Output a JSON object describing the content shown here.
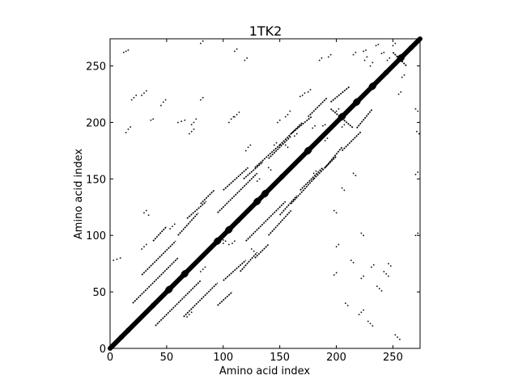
{
  "chart_data": {
    "type": "heatmap",
    "title": "1TK2",
    "xlabel": "Amino acid index",
    "ylabel": "Amino acid index",
    "xlim": [
      0,
      274
    ],
    "ylim": [
      0,
      274
    ],
    "grid": false,
    "xticks": [
      0,
      50,
      100,
      150,
      200,
      250
    ],
    "yticks": [
      0,
      50,
      100,
      150,
      200,
      250
    ],
    "xtick_labels": [
      "0",
      "50",
      "100",
      "150",
      "200",
      "250"
    ],
    "ytick_labels": [
      "0",
      "50",
      "100",
      "150",
      "200",
      "250"
    ],
    "cmap": [
      "#ffffff",
      "#000000"
    ],
    "diagonal": {
      "from": 0,
      "to": 274,
      "half_width": 3
    },
    "diagonal_blobs": [
      [
        10,
        3
      ],
      [
        16,
        3
      ],
      [
        38,
        3
      ],
      [
        52,
        4
      ],
      [
        66,
        4
      ],
      [
        95,
        4
      ],
      [
        105,
        4
      ],
      [
        113,
        3
      ],
      [
        130,
        4
      ],
      [
        137,
        4
      ],
      [
        152,
        3
      ],
      [
        175,
        4
      ],
      [
        205,
        4
      ],
      [
        218,
        4
      ],
      [
        232,
        4
      ],
      [
        244,
        3
      ],
      [
        257,
        4
      ],
      [
        266,
        3
      ]
    ],
    "contact_segments": [
      {
        "from": [
          20,
          40
        ],
        "to": [
          60,
          80
        ],
        "width": 1
      },
      {
        "from": [
          28,
          65
        ],
        "to": [
          58,
          95
        ],
        "width": 1
      },
      {
        "from": [
          38,
          95
        ],
        "to": [
          50,
          108
        ],
        "width": 1
      },
      {
        "from": [
          60,
          100
        ],
        "to": [
          78,
          120
        ],
        "width": 1
      },
      {
        "from": [
          68,
          115
        ],
        "to": [
          85,
          130
        ],
        "width": 1
      },
      {
        "from": [
          80,
          128
        ],
        "to": [
          92,
          140
        ],
        "width": 1
      },
      {
        "from": [
          95,
          120
        ],
        "to": [
          130,
          155
        ],
        "width": 1
      },
      {
        "from": [
          100,
          140
        ],
        "to": [
          122,
          160
        ],
        "width": 1
      },
      {
        "from": [
          118,
          150
        ],
        "to": [
          135,
          165
        ],
        "width": 1
      },
      {
        "from": [
          128,
          160
        ],
        "to": [
          150,
          180
        ],
        "width": 1
      },
      {
        "from": [
          140,
          168
        ],
        "to": [
          160,
          188
        ],
        "width": 1
      },
      {
        "from": [
          150,
          180
        ],
        "to": [
          170,
          200
        ],
        "width": 1
      },
      {
        "from": [
          160,
          190
        ],
        "to": [
          178,
          205
        ],
        "width": 1
      },
      {
        "from": [
          175,
          205
        ],
        "to": [
          192,
          222
        ],
        "width": 1
      },
      {
        "from": [
          195,
          218
        ],
        "to": [
          212,
          232
        ],
        "width": 1
      },
      {
        "from": [
          195,
          212
        ],
        "to": [
          215,
          195
        ],
        "width": 1
      },
      {
        "from": [
          250,
          262
        ],
        "to": [
          262,
          250
        ],
        "width": 1
      },
      {
        "from": [
          40,
          20
        ],
        "to": [
          80,
          60
        ],
        "width": 1
      },
      {
        "from": [
          65,
          28
        ],
        "to": [
          95,
          58
        ],
        "width": 1
      },
      {
        "from": [
          95,
          38
        ],
        "to": [
          108,
          50
        ],
        "width": 1
      },
      {
        "from": [
          100,
          60
        ],
        "to": [
          120,
          78
        ],
        "width": 1
      },
      {
        "from": [
          115,
          68
        ],
        "to": [
          130,
          85
        ],
        "width": 1
      },
      {
        "from": [
          128,
          80
        ],
        "to": [
          140,
          92
        ],
        "width": 1
      },
      {
        "from": [
          120,
          95
        ],
        "to": [
          155,
          130
        ],
        "width": 1
      },
      {
        "from": [
          140,
          100
        ],
        "to": [
          160,
          122
        ],
        "width": 1
      },
      {
        "from": [
          150,
          118
        ],
        "to": [
          165,
          135
        ],
        "width": 1
      },
      {
        "from": [
          160,
          128
        ],
        "to": [
          180,
          150
        ],
        "width": 1
      },
      {
        "from": [
          168,
          140
        ],
        "to": [
          188,
          160
        ],
        "width": 1
      },
      {
        "from": [
          180,
          150
        ],
        "to": [
          200,
          170
        ],
        "width": 1
      },
      {
        "from": [
          190,
          160
        ],
        "to": [
          205,
          178
        ],
        "width": 1
      },
      {
        "from": [
          205,
          175
        ],
        "to": [
          222,
          192
        ],
        "width": 1
      },
      {
        "from": [
          218,
          195
        ],
        "to": [
          232,
          212
        ],
        "width": 1
      }
    ],
    "contact_points": [
      [
        3,
        78
      ],
      [
        6,
        79
      ],
      [
        9,
        80
      ],
      [
        14,
        191
      ],
      [
        16,
        194
      ],
      [
        18,
        196
      ],
      [
        19,
        220
      ],
      [
        21,
        222
      ],
      [
        23,
        224
      ],
      [
        12,
        262
      ],
      [
        14,
        263
      ],
      [
        16,
        264
      ],
      [
        28,
        224
      ],
      [
        30,
        226
      ],
      [
        32,
        228
      ],
      [
        36,
        202
      ],
      [
        38,
        203
      ],
      [
        30,
        120
      ],
      [
        32,
        122
      ],
      [
        34,
        118
      ],
      [
        28,
        88
      ],
      [
        30,
        90
      ],
      [
        32,
        92
      ],
      [
        55,
        108
      ],
      [
        57,
        110
      ],
      [
        53,
        106
      ],
      [
        45,
        215
      ],
      [
        47,
        218
      ],
      [
        49,
        220
      ],
      [
        60,
        200
      ],
      [
        63,
        201
      ],
      [
        66,
        202
      ],
      [
        72,
        198
      ],
      [
        74,
        200
      ],
      [
        76,
        203
      ],
      [
        70,
        190
      ],
      [
        72,
        192
      ],
      [
        74,
        194
      ],
      [
        80,
        220
      ],
      [
        82,
        222
      ],
      [
        68,
        28
      ],
      [
        70,
        30
      ],
      [
        72,
        32
      ],
      [
        80,
        68
      ],
      [
        82,
        70
      ],
      [
        84,
        72
      ],
      [
        105,
        92
      ],
      [
        108,
        93
      ],
      [
        110,
        95
      ],
      [
        98,
        98
      ],
      [
        100,
        96
      ],
      [
        120,
        175
      ],
      [
        122,
        178
      ],
      [
        124,
        180
      ],
      [
        105,
        200
      ],
      [
        107,
        203
      ],
      [
        109,
        205
      ],
      [
        110,
        205
      ],
      [
        112,
        207
      ],
      [
        114,
        209
      ],
      [
        119,
        255
      ],
      [
        121,
        257
      ],
      [
        130,
        148
      ],
      [
        132,
        150
      ],
      [
        140,
        160
      ],
      [
        142,
        158
      ],
      [
        145,
        180
      ],
      [
        147,
        182
      ],
      [
        165,
        165
      ],
      [
        167,
        167
      ],
      [
        155,
        205
      ],
      [
        157,
        207
      ],
      [
        159,
        210
      ],
      [
        168,
        223
      ],
      [
        170,
        224
      ],
      [
        172,
        226
      ],
      [
        175,
        227
      ],
      [
        177,
        229
      ],
      [
        148,
        200
      ],
      [
        150,
        202
      ],
      [
        163,
        188
      ],
      [
        165,
        190
      ],
      [
        180,
        155
      ],
      [
        182,
        157
      ],
      [
        190,
        184
      ],
      [
        192,
        186
      ],
      [
        179,
        195
      ],
      [
        181,
        197
      ],
      [
        187,
        189
      ],
      [
        189,
        190
      ],
      [
        192,
        192
      ],
      [
        188,
        197
      ],
      [
        190,
        198
      ],
      [
        185,
        255
      ],
      [
        187,
        257
      ],
      [
        193,
        258
      ],
      [
        195,
        260
      ],
      [
        200,
        210
      ],
      [
        202,
        212
      ],
      [
        215,
        260
      ],
      [
        217,
        262
      ],
      [
        225,
        255
      ],
      [
        227,
        258
      ],
      [
        224,
        263
      ],
      [
        226,
        264
      ],
      [
        230,
        250
      ],
      [
        232,
        253
      ],
      [
        235,
        268
      ],
      [
        237,
        269
      ],
      [
        240,
        261
      ],
      [
        242,
        262
      ],
      [
        198,
        122
      ],
      [
        200,
        120
      ],
      [
        205,
        196
      ],
      [
        207,
        198
      ],
      [
        215,
        155
      ],
      [
        217,
        153
      ],
      [
        213,
        78
      ],
      [
        215,
        76
      ],
      [
        220,
        30
      ],
      [
        222,
        32
      ],
      [
        224,
        34
      ],
      [
        230,
        22
      ],
      [
        232,
        20
      ],
      [
        228,
        24
      ],
      [
        236,
        55
      ],
      [
        238,
        53
      ],
      [
        240,
        51
      ],
      [
        242,
        68
      ],
      [
        244,
        66
      ],
      [
        246,
        64
      ],
      [
        208,
        40
      ],
      [
        210,
        38
      ],
      [
        252,
        12
      ],
      [
        254,
        10
      ],
      [
        256,
        8
      ],
      [
        270,
        100
      ],
      [
        272,
        102
      ],
      [
        272,
        156
      ],
      [
        270,
        154
      ],
      [
        273,
        190
      ],
      [
        271,
        192
      ],
      [
        272,
        210
      ],
      [
        270,
        212
      ],
      [
        258,
        240
      ],
      [
        260,
        242
      ],
      [
        245,
        255
      ],
      [
        247,
        257
      ],
      [
        250,
        268
      ],
      [
        252,
        270
      ],
      [
        255,
        225
      ],
      [
        257,
        227
      ],
      [
        222,
        62
      ],
      [
        224,
        64
      ],
      [
        231,
        72
      ],
      [
        233,
        74
      ],
      [
        198,
        65
      ],
      [
        200,
        67
      ],
      [
        205,
        142
      ],
      [
        207,
        140
      ],
      [
        200,
        90
      ],
      [
        202,
        92
      ],
      [
        246,
        75
      ],
      [
        248,
        73
      ],
      [
        222,
        102
      ],
      [
        224,
        100
      ],
      [
        155,
        180
      ],
      [
        157,
        178
      ],
      [
        125,
        88
      ],
      [
        127,
        86
      ],
      [
        80,
        270
      ],
      [
        82,
        272
      ],
      [
        110,
        263
      ],
      [
        112,
        265
      ],
      [
        100,
        93
      ],
      [
        102,
        95
      ]
    ]
  }
}
